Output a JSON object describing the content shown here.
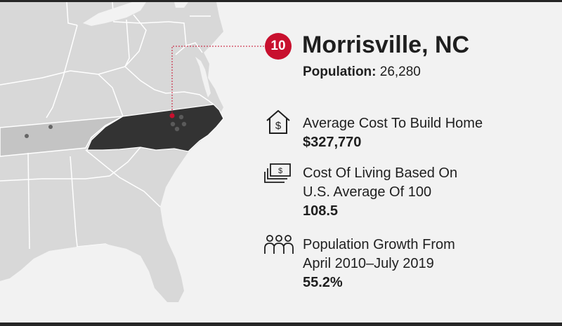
{
  "highlight": {
    "rank": "10",
    "city": "Morrisville, NC",
    "population_label": "Population:",
    "population_value": "26,280"
  },
  "stats": [
    {
      "icon": "house-dollar-icon",
      "label_lines": [
        "Average Cost To Build Home"
      ],
      "value": "$327,770"
    },
    {
      "icon": "money-stack-icon",
      "label_lines": [
        "Cost Of Living Based On",
        "U.S. Average Of 100"
      ],
      "value": "108.5"
    },
    {
      "icon": "people-group-icon",
      "label_lines": [
        "Population Growth From",
        "April 2010–July 2019"
      ],
      "value": "55.2%"
    }
  ],
  "colors": {
    "accent": "#c8102e",
    "highlight_state": "#333333",
    "secondary_state": "#c4c4c4",
    "land": "#d8d8d8",
    "water": "#f2f2f2",
    "borders": "#ffffff",
    "text": "#1f1f1f",
    "frame": "#262626"
  }
}
